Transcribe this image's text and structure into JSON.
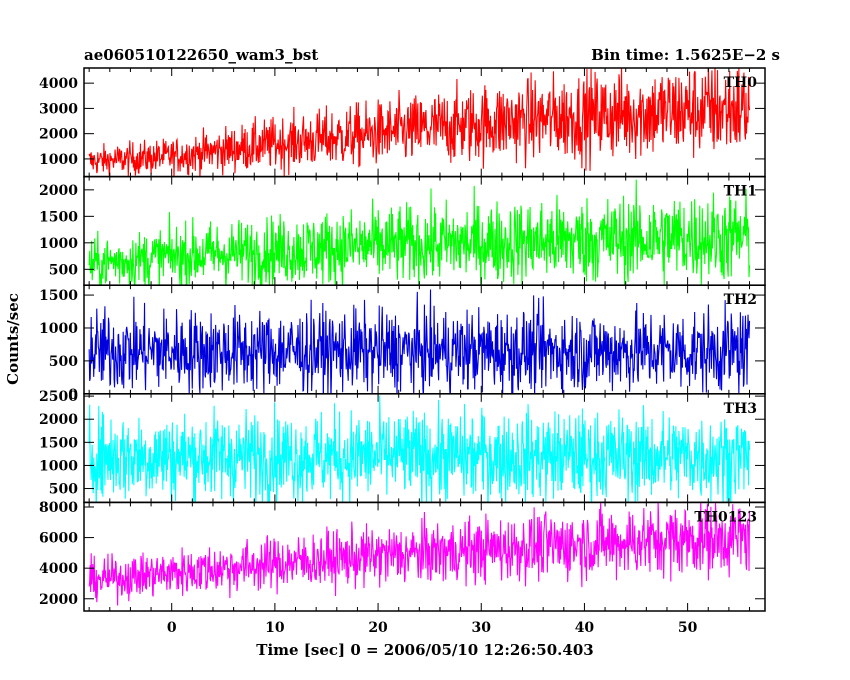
{
  "chart_data": {
    "type": "line",
    "title_left": "ae060510122650_wam3_bst",
    "title_right": "Bin time: 1.5625E−2 s",
    "xlabel": "Time [sec] 0 = 2006/05/10 12:26:50.403",
    "ylabel": "Counts/sec",
    "xlim": [
      -8.5,
      57.5
    ],
    "x_ticks": [
      "0",
      "10",
      "20",
      "30",
      "40",
      "50"
    ],
    "x_range": [
      -8,
      56
    ],
    "panels": [
      {
        "name": "TH0",
        "color": "#ff0000",
        "ylim": [
          300,
          4600
        ],
        "y_ticks": [
          "1000",
          "2000",
          "3000",
          "4000"
        ],
        "trend": [
          [
            -8,
            900
          ],
          [
            0,
            1100
          ],
          [
            10,
            1600
          ],
          [
            20,
            2000
          ],
          [
            30,
            2400
          ],
          [
            40,
            2700
          ],
          [
            50,
            2900
          ],
          [
            56,
            3000
          ]
        ],
        "noise": 0.32
      },
      {
        "name": "TH1",
        "color": "#00ff00",
        "ylim": [
          200,
          2250
        ],
        "y_ticks": [
          "500",
          "1000",
          "1500",
          "2000"
        ],
        "trend": [
          [
            -8,
            600
          ],
          [
            0,
            750
          ],
          [
            10,
            850
          ],
          [
            20,
            950
          ],
          [
            30,
            1000
          ],
          [
            40,
            1050
          ],
          [
            50,
            1100
          ],
          [
            56,
            1100
          ]
        ],
        "noise": 0.38
      },
      {
        "name": "TH2",
        "color": "#0000dd",
        "ylim": [
          0,
          1650
        ],
        "y_ticks": [
          "0",
          "500",
          "1000",
          "1500"
        ],
        "trend": [
          [
            -8,
            650
          ],
          [
            56,
            650
          ]
        ],
        "noise": 0.48
      },
      {
        "name": "TH3",
        "color": "#00ffff",
        "ylim": [
          200,
          2550
        ],
        "y_ticks": [
          "500",
          "1000",
          "1500",
          "2000",
          "2500"
        ],
        "trend": [
          [
            -8,
            1200
          ],
          [
            56,
            1200
          ]
        ],
        "noise": 0.4
      },
      {
        "name": "TH0123",
        "color": "#ff00ff",
        "ylim": [
          1200,
          8300
        ],
        "y_ticks": [
          "2000",
          "4000",
          "6000",
          "8000"
        ],
        "trend": [
          [
            -8,
            3200
          ],
          [
            0,
            3700
          ],
          [
            10,
            4300
          ],
          [
            20,
            4800
          ],
          [
            30,
            5200
          ],
          [
            40,
            5600
          ],
          [
            50,
            5900
          ],
          [
            56,
            6000
          ]
        ],
        "noise": 0.2
      }
    ]
  }
}
